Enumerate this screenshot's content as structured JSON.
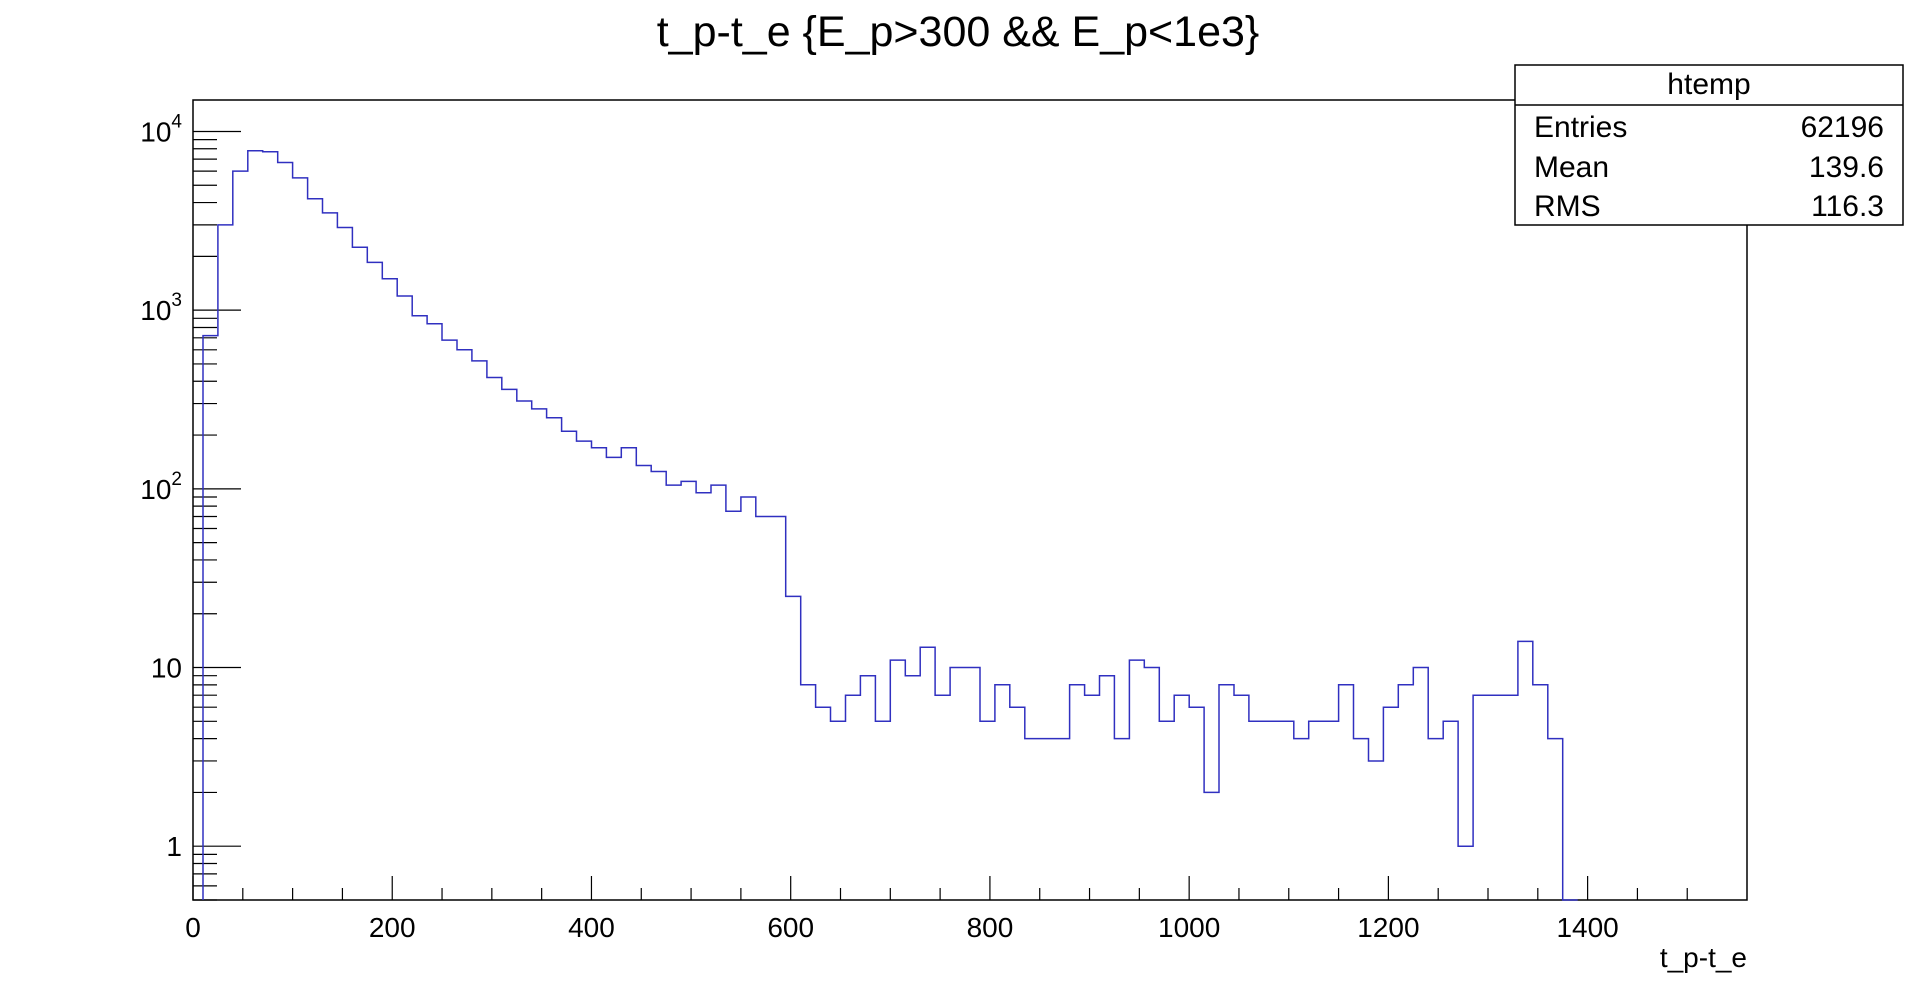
{
  "chart_data": {
    "type": "histogram",
    "title": "t_p-t_e {E_p>300 && E_p<1e3}",
    "xlabel": "t_p-t_e",
    "ylabel": "",
    "xlim": [
      0,
      1560
    ],
    "ylim": [
      0.5,
      15000
    ],
    "log_y": true,
    "grid": false,
    "x_ticks": [
      "0",
      "200",
      "400",
      "600",
      "800",
      "1000",
      "1200",
      "1400"
    ],
    "y_ticks": [
      {
        "value": 1,
        "base": "1",
        "exp": ""
      },
      {
        "value": 10,
        "base": "10",
        "exp": ""
      },
      {
        "value": 100,
        "base": "10",
        "exp": "2"
      },
      {
        "value": 1000,
        "base": "10",
        "exp": "3"
      },
      {
        "value": 10000,
        "base": "10",
        "exp": "4"
      }
    ],
    "line_color": "#3030c0",
    "bin_width": 15,
    "x_start": 10,
    "counts": [
      720,
      3000,
      6000,
      7800,
      7700,
      6700,
      5500,
      4200,
      3500,
      2900,
      2250,
      1850,
      1500,
      1200,
      930,
      840,
      680,
      600,
      520,
      420,
      360,
      310,
      280,
      250,
      210,
      185,
      170,
      150,
      170,
      135,
      125,
      105,
      110,
      95,
      105,
      75,
      90,
      70,
      70,
      25,
      8,
      6,
      5,
      7,
      9,
      5,
      11,
      9,
      13,
      7,
      10,
      10,
      5,
      8,
      6,
      4,
      4,
      4,
      8,
      7,
      9,
      4,
      11,
      10,
      5,
      7,
      6,
      2,
      8,
      7,
      5,
      5,
      5,
      4,
      5,
      5,
      8,
      4,
      3,
      6,
      8,
      10,
      4,
      5,
      1,
      7,
      7,
      7,
      14,
      8,
      4,
      0
    ],
    "stats": {
      "name": "htemp",
      "rows": [
        {
          "label": "Entries",
          "value": "62196"
        },
        {
          "label": "Mean",
          "value": "139.6"
        },
        {
          "label": "RMS",
          "value": "116.3"
        }
      ]
    }
  }
}
